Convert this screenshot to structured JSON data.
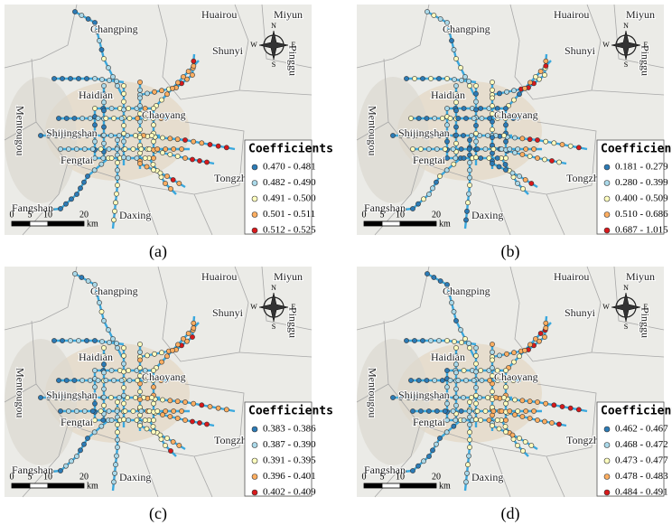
{
  "map": {
    "places": [
      "Changping",
      "Huairou",
      "Miyun",
      "Pinggu",
      "Shunyi",
      "Haidian",
      "Chaoyang",
      "Mentougou",
      "Shijingshan",
      "Fengtai",
      "Tongzhou",
      "Fangshan",
      "Daxing"
    ],
    "compass": [
      "N",
      "S",
      "W",
      "E"
    ],
    "scale": {
      "ticks": [
        0,
        5,
        10,
        20
      ],
      "unit": "km"
    },
    "legend_title": "Coefficients",
    "colors": [
      "#2c7bb6",
      "#abd9e9",
      "#ffffbf",
      "#fdae61",
      "#d7191c"
    ]
  },
  "panels": [
    {
      "label": "(a)",
      "legend": [
        "0.470 - 0.481",
        "0.482 - 0.490",
        "0.491 - 0.500",
        "0.501 - 0.511",
        "0.512 - 0.525"
      ]
    },
    {
      "label": "(b)",
      "legend": [
        "0.181 - 0.279",
        "0.280 - 0.399",
        "0.400 - 0.509",
        "0.510 - 0.686",
        "0.687 - 1.015"
      ]
    },
    {
      "label": "(c)",
      "legend": [
        "0.383 - 0.386",
        "0.387 - 0.390",
        "0.391 - 0.395",
        "0.396 - 0.401",
        "0.402 - 0.409"
      ]
    },
    {
      "label": "(d)",
      "legend": [
        "0.462 - 0.467",
        "0.468 - 0.472",
        "0.473 - 0.477",
        "0.478 - 0.483",
        "0.484 - 0.491"
      ]
    }
  ]
}
